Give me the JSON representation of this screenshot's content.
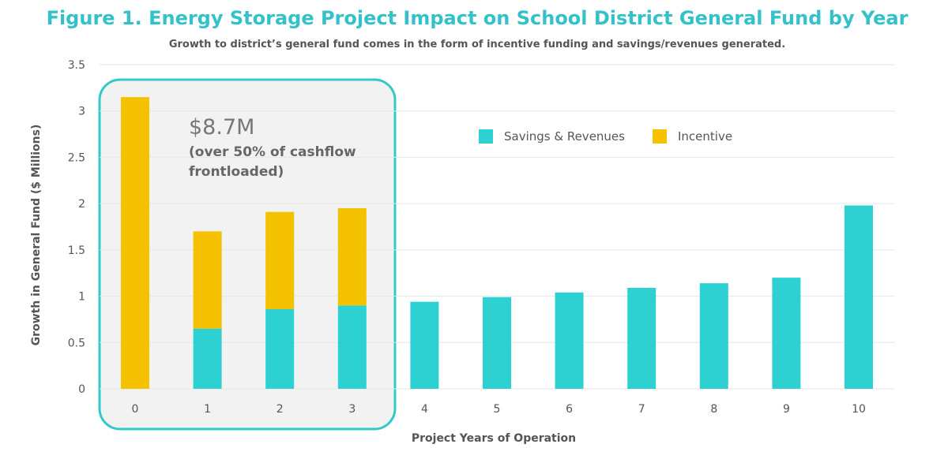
{
  "chart_data": {
    "type": "bar",
    "stacked": true,
    "title": "Figure 1. Energy Storage Project Impact on School District General Fund by Year",
    "subtitle": "Growth to district’s general fund comes in the form of incentive funding and savings/revenues generated.",
    "xlabel": "Project Years of Operation",
    "ylabel": "Growth in General Fund ($ Millions)",
    "ylim": [
      0,
      3.5
    ],
    "yticks": [
      "0",
      "0.5",
      "1",
      "1.5",
      "2",
      "2.5",
      "3",
      "3.5"
    ],
    "ytick_values": [
      0,
      0.5,
      1,
      1.5,
      2,
      2.5,
      3,
      3.5
    ],
    "categories": [
      "0",
      "1",
      "2",
      "3",
      "4",
      "5",
      "6",
      "7",
      "8",
      "9",
      "10"
    ],
    "grid": "horizontal",
    "legend_position": "upper-center-right",
    "series": [
      {
        "name": "Savings & Revenues",
        "color": "#2ed1d1",
        "values": [
          0,
          0.65,
          0.86,
          0.9,
          0.94,
          0.99,
          1.04,
          1.09,
          1.14,
          1.2,
          1.98
        ]
      },
      {
        "name": "Incentive",
        "color": "#f5c200",
        "values": [
          3.15,
          1.05,
          1.05,
          1.05,
          0,
          0,
          0,
          0,
          0,
          0,
          0
        ]
      }
    ],
    "annotation": {
      "highlight_years": [
        "0",
        "1",
        "2",
        "3"
      ],
      "amount": "$8.7M",
      "note_line1": "(over 50% of cashflow",
      "note_line2": "frontloaded)"
    },
    "colors": {
      "title": "#33c2c9",
      "text": "#555555",
      "grid": "#e6e6e6",
      "highlight_fill": "#f2f2f2",
      "highlight_border": "#33c9c9"
    }
  }
}
